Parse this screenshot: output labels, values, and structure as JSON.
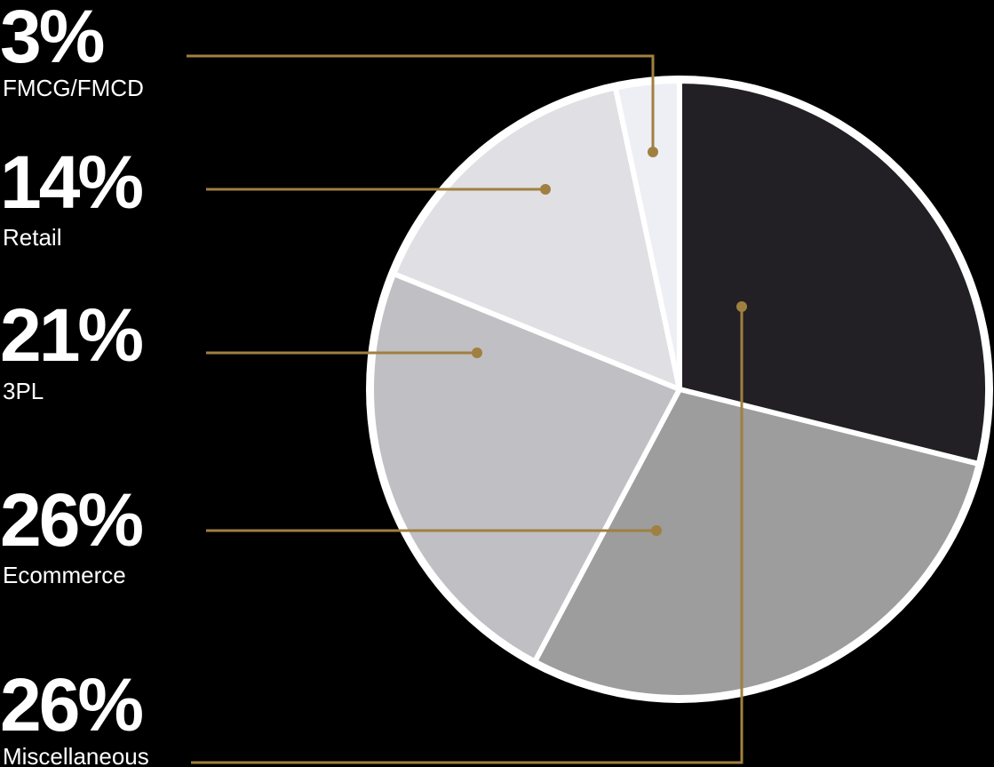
{
  "chart_data": {
    "type": "pie",
    "categories": [
      "FMCG/FMCD",
      "Retail",
      "3PL",
      "Ecommerce",
      "Miscellaneous"
    ],
    "values": [
      3,
      14,
      21,
      26,
      26
    ],
    "value_labels": [
      "3%",
      "14%",
      "21%",
      "26%",
      "26%"
    ],
    "colors": [
      "#eeeef5",
      "#e0dfe4",
      "#c0bfc4",
      "#9d9d9d",
      "#222024"
    ],
    "leader_color": "#a08040"
  }
}
